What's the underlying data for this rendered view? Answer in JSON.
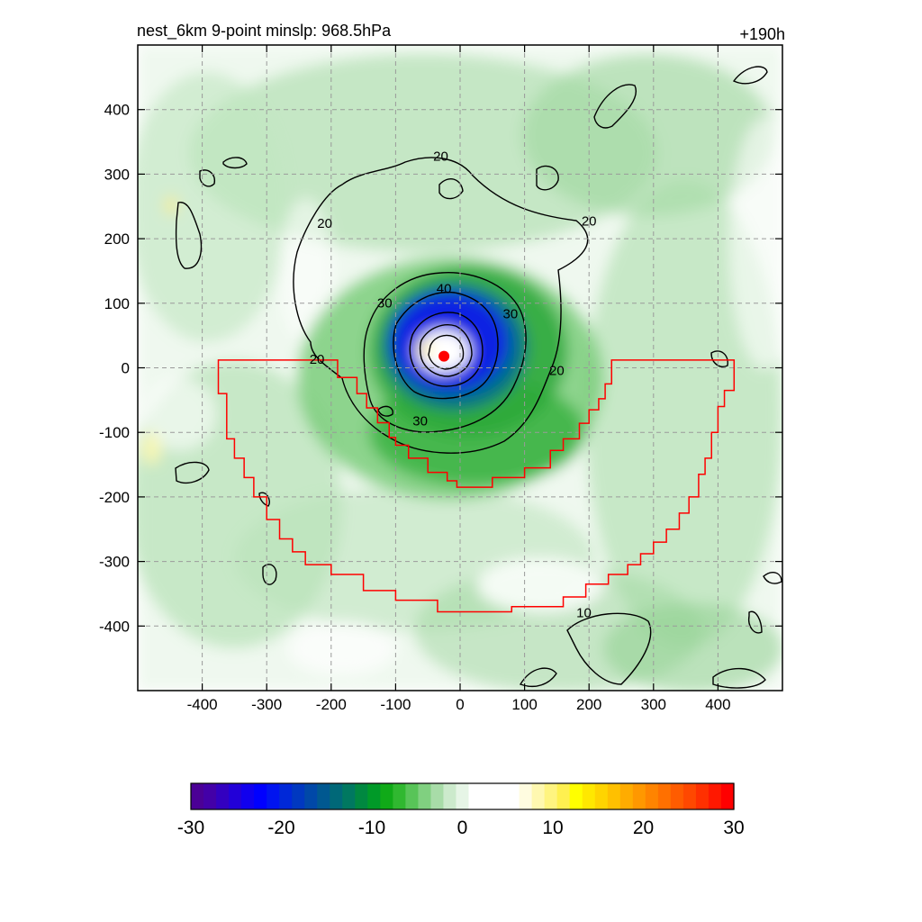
{
  "header": {
    "title": "nest_6km  9-point minslp: 968.5hPa",
    "time_label": "+190h"
  },
  "chart_data": {
    "type": "heatmap",
    "title": "nest_6km  9-point minslp: 968.5hPa",
    "time_label": "+190h",
    "xlabel": "",
    "ylabel": "",
    "xlim": [
      -500,
      500
    ],
    "ylim": [
      -500,
      500
    ],
    "x_ticks": [
      -400,
      -300,
      -200,
      -100,
      0,
      100,
      200,
      300,
      400
    ],
    "y_ticks": [
      400,
      300,
      200,
      100,
      0,
      -100,
      -200,
      -300,
      -400
    ],
    "x_tick_labels": [
      "-400",
      "-300",
      "-200",
      "-100",
      "0",
      "100",
      "200",
      "300",
      "400"
    ],
    "y_tick_labels": [
      "400",
      "300",
      "200",
      "100",
      "0",
      "-100",
      "-200",
      "-300",
      "-400"
    ],
    "grid": true,
    "center_marker": {
      "x": -25,
      "y": 18,
      "color": "#ff0000"
    },
    "contour_labels": [
      {
        "text": "20",
        "x": -30,
        "y": 322
      },
      {
        "text": "20",
        "x": -210,
        "y": 218
      },
      {
        "text": "20",
        "x": 200,
        "y": 222
      },
      {
        "text": "20",
        "x": -222,
        "y": 8
      },
      {
        "text": "20",
        "x": 150,
        "y": -10
      },
      {
        "text": "30",
        "x": -117,
        "y": 95
      },
      {
        "text": "40",
        "x": -25,
        "y": 117
      },
      {
        "text": "30",
        "x": 78,
        "y": 78
      },
      {
        "text": "30",
        "x": -62,
        "y": -88
      },
      {
        "text": "10",
        "x": 192,
        "y": -385
      }
    ],
    "red_boundary_polygon": [
      [
        -375,
        12
      ],
      [
        -190,
        12
      ],
      [
        -190,
        -15
      ],
      [
        -160,
        -15
      ],
      [
        -160,
        -40
      ],
      [
        -145,
        -40
      ],
      [
        -145,
        -62
      ],
      [
        -128,
        -62
      ],
      [
        -128,
        -85
      ],
      [
        -110,
        -85
      ],
      [
        -110,
        -108
      ],
      [
        -100,
        -108
      ],
      [
        -100,
        -120
      ],
      [
        -80,
        -120
      ],
      [
        -80,
        -140
      ],
      [
        -50,
        -140
      ],
      [
        -50,
        -162
      ],
      [
        -20,
        -162
      ],
      [
        -20,
        -175
      ],
      [
        -5,
        -175
      ],
      [
        -5,
        -185
      ],
      [
        50,
        -185
      ],
      [
        50,
        -170
      ],
      [
        100,
        -170
      ],
      [
        100,
        -155
      ],
      [
        140,
        -155
      ],
      [
        140,
        -128
      ],
      [
        160,
        -128
      ],
      [
        160,
        -110
      ],
      [
        185,
        -110
      ],
      [
        185,
        -86
      ],
      [
        200,
        -86
      ],
      [
        200,
        -65
      ],
      [
        215,
        -65
      ],
      [
        215,
        -48
      ],
      [
        225,
        -48
      ],
      [
        225,
        -25
      ],
      [
        235,
        -25
      ],
      [
        235,
        12
      ],
      [
        425,
        12
      ],
      [
        425,
        -35
      ],
      [
        410,
        -35
      ],
      [
        410,
        -60
      ],
      [
        400,
        -60
      ],
      [
        400,
        -100
      ],
      [
        390,
        -100
      ],
      [
        390,
        -140
      ],
      [
        380,
        -140
      ],
      [
        380,
        -165
      ],
      [
        370,
        -165
      ],
      [
        370,
        -200
      ],
      [
        355,
        -200
      ],
      [
        355,
        -225
      ],
      [
        340,
        -225
      ],
      [
        340,
        -250
      ],
      [
        320,
        -250
      ],
      [
        320,
        -270
      ],
      [
        300,
        -270
      ],
      [
        300,
        -288
      ],
      [
        280,
        -288
      ],
      [
        280,
        -305
      ],
      [
        260,
        -305
      ],
      [
        260,
        -320
      ],
      [
        230,
        -320
      ],
      [
        230,
        -335
      ],
      [
        195,
        -335
      ],
      [
        195,
        -355
      ],
      [
        160,
        -355
      ],
      [
        160,
        -370
      ],
      [
        80,
        -370
      ],
      [
        80,
        -378
      ],
      [
        -35,
        -378
      ],
      [
        -35,
        -360
      ],
      [
        -100,
        -360
      ],
      [
        -100,
        -345
      ],
      [
        -150,
        -345
      ],
      [
        -150,
        -320
      ],
      [
        -200,
        -320
      ],
      [
        -200,
        -305
      ],
      [
        -240,
        -305
      ],
      [
        -240,
        -285
      ],
      [
        -260,
        -285
      ],
      [
        -260,
        -265
      ],
      [
        -280,
        -265
      ],
      [
        -280,
        -235
      ],
      [
        -300,
        -235
      ],
      [
        -300,
        -200
      ],
      [
        -320,
        -200
      ],
      [
        -320,
        -170
      ],
      [
        -335,
        -170
      ],
      [
        -335,
        -140
      ],
      [
        -350,
        -140
      ],
      [
        -350,
        -110
      ],
      [
        -362,
        -110
      ],
      [
        -362,
        -40
      ],
      [
        -375,
        -40
      ]
    ],
    "colorbar": {
      "vmin": -30,
      "vmax": 30,
      "tick_values": [
        -30,
        -20,
        -10,
        0,
        10,
        20,
        30
      ],
      "tick_labels": [
        "-30",
        "-20",
        "-10",
        "0",
        "10",
        "20",
        "30"
      ],
      "colors": [
        "#4b0096",
        "#4300a8",
        "#3300c0",
        "#2200d8",
        "#1100ee",
        "#0000ff",
        "#0014f0",
        "#0028d8",
        "#0038c0",
        "#0048a8",
        "#005890",
        "#006878",
        "#007860",
        "#008840",
        "#009a28",
        "#10aa18",
        "#30b830",
        "#58c458",
        "#80d080",
        "#a8dca8",
        "#cceacc",
        "#e6f5e6",
        "#ffffff",
        "#ffffff",
        "#ffffff",
        "#ffffff",
        "#fffce0",
        "#fff8b0",
        "#fff480",
        "#fff050",
        "#ffff00",
        "#ffe800",
        "#ffd400",
        "#ffc000",
        "#ffac00",
        "#ff9800",
        "#ff8400",
        "#ff7000",
        "#ff5c00",
        "#ff4800",
        "#ff3000",
        "#ff1800",
        "#ff0000"
      ]
    },
    "colors": {
      "vortex_strong": "#0a14e6",
      "vortex_mid": "#0050a0",
      "band_green": "#38b43c",
      "light_green": "#a8dca8",
      "pale_green": "#d8efd8",
      "boundary": "#ff0000",
      "contour": "#000000"
    }
  }
}
